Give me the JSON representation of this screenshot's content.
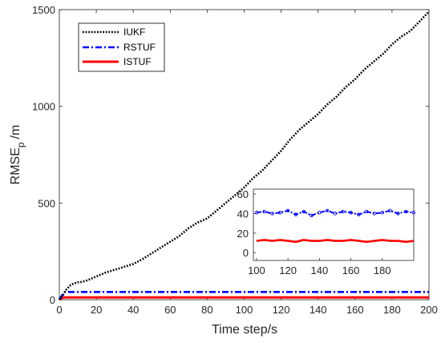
{
  "chart_data": {
    "type": "line",
    "xlabel": "Time step/s",
    "ylabel": "RMSE",
    "ylabel_subscript": "p",
    "ylabel_unit": "/m",
    "xlim": [
      0,
      200
    ],
    "ylim": [
      0,
      1500
    ],
    "x_ticks": [
      0,
      20,
      40,
      60,
      80,
      100,
      120,
      140,
      160,
      180,
      200
    ],
    "y_ticks": [
      0,
      500,
      1000,
      1500
    ],
    "grid": false,
    "legend_placement": "top-left",
    "series": [
      {
        "name": "IUKF",
        "color": "#000000",
        "style": "dotted",
        "x": [
          0,
          2,
          4,
          6,
          8,
          10,
          12,
          15,
          20,
          25,
          30,
          35,
          40,
          45,
          50,
          55,
          60,
          65,
          70,
          75,
          80,
          85,
          90,
          95,
          100,
          105,
          110,
          115,
          120,
          125,
          130,
          135,
          140,
          145,
          150,
          155,
          160,
          165,
          170,
          175,
          180,
          185,
          190,
          195,
          200
        ],
        "y": [
          0,
          25,
          55,
          75,
          85,
          90,
          92,
          100,
          120,
          140,
          155,
          170,
          185,
          210,
          240,
          270,
          300,
          330,
          370,
          400,
          420,
          460,
          500,
          540,
          580,
          630,
          670,
          720,
          770,
          830,
          880,
          920,
          960,
          1010,
          1050,
          1100,
          1140,
          1190,
          1230,
          1270,
          1320,
          1360,
          1390,
          1440,
          1490
        ]
      },
      {
        "name": "RSTUF",
        "color": "#0000ff",
        "style": "dash-dot",
        "x": [
          0,
          2,
          3,
          5,
          200
        ],
        "y": [
          0,
          30,
          40,
          40,
          40
        ]
      },
      {
        "name": "ISTUF",
        "color": "#ff0000",
        "style": "solid",
        "x": [
          0,
          2,
          3,
          5,
          200
        ],
        "y": [
          0,
          12,
          12,
          12,
          12
        ]
      }
    ],
    "inset": {
      "xlim": [
        98,
        200
      ],
      "ylim": [
        -8,
        65
      ],
      "x_ticks": [
        100,
        120,
        140,
        160,
        180
      ],
      "y_ticks": [
        0,
        20,
        40,
        60
      ],
      "series": [
        {
          "name": "RSTUF",
          "color": "#0000ff",
          "x": [
            100,
            105,
            110,
            115,
            120,
            125,
            130,
            135,
            140,
            145,
            150,
            155,
            160,
            165,
            170,
            175,
            180,
            185,
            190,
            195,
            200
          ],
          "y": [
            41,
            42,
            40,
            41,
            43,
            39,
            42,
            38,
            41,
            43,
            40,
            42,
            41,
            39,
            42,
            40,
            41,
            43,
            40,
            42,
            41
          ]
        },
        {
          "name": "ISTUF",
          "color": "#ff0000",
          "x": [
            100,
            105,
            110,
            115,
            120,
            125,
            130,
            135,
            140,
            145,
            150,
            155,
            160,
            165,
            170,
            175,
            180,
            185,
            190,
            195,
            200
          ],
          "y": [
            12,
            13,
            12,
            13,
            12,
            11,
            13,
            12,
            12,
            13,
            12,
            12,
            13,
            12,
            11,
            12,
            13,
            12,
            12,
            11,
            12
          ]
        }
      ]
    }
  }
}
